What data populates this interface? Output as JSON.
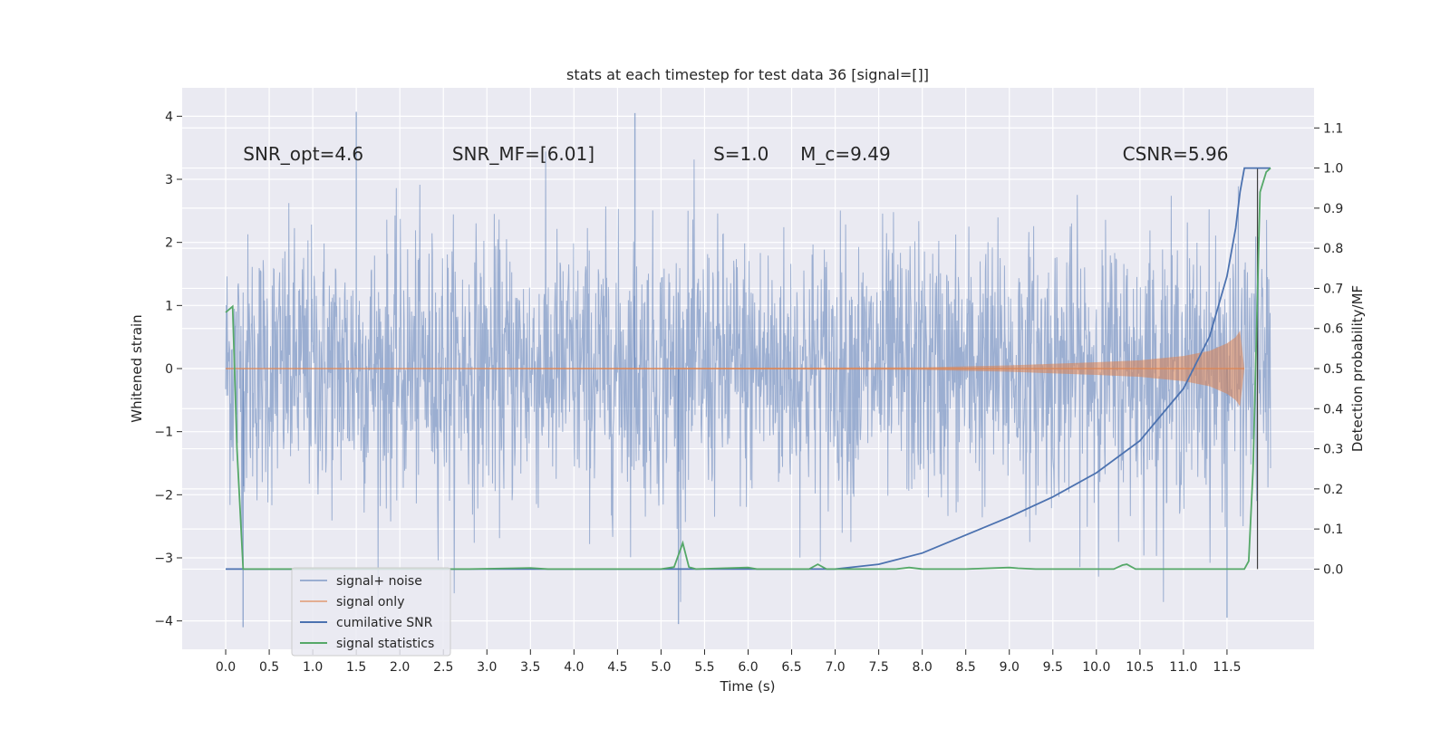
{
  "chart_data": {
    "type": "line",
    "title": "stats at each timestep for test data 36 [signal=[]]",
    "xlabel": "Time (s)",
    "ylabel": "Whitened strain",
    "ylabel_right": "Detection probability/MF",
    "xlim": [
      -0.5,
      12.5
    ],
    "ylim": [
      -4.45,
      4.45
    ],
    "ylim_right": [
      -0.2,
      1.2
    ],
    "x_ticks": [
      "0.0",
      "0.5",
      "1.0",
      "1.5",
      "2.0",
      "2.5",
      "3.0",
      "3.5",
      "4.0",
      "4.5",
      "5.0",
      "5.5",
      "6.0",
      "6.5",
      "7.0",
      "7.5",
      "8.0",
      "8.5",
      "9.0",
      "9.5",
      "10.0",
      "10.5",
      "11.0",
      "11.5"
    ],
    "y_ticks": [
      "4",
      "3",
      "2",
      "1",
      "0",
      "−1",
      "−2",
      "−3",
      "−4"
    ],
    "y_ticks_right": [
      "1.1",
      "1.0",
      "0.9",
      "0.8",
      "0.7",
      "0.6",
      "0.5",
      "0.4",
      "0.3",
      "0.2",
      "0.1",
      "0.0"
    ],
    "annotations": [
      {
        "text": "SNR_opt=4.6",
        "x": 0.2,
        "y": 3.3
      },
      {
        "text": "SNR_MF=[6.01]",
        "x": 2.6,
        "y": 3.3
      },
      {
        "text": "S=1.0",
        "x": 5.6,
        "y": 3.3
      },
      {
        "text": "M_c=9.49",
        "x": 6.6,
        "y": 3.3
      },
      {
        "text": "CSNR=5.96",
        "x": 10.3,
        "y": 3.3
      }
    ],
    "grid": true,
    "legend_position": "lower-left",
    "series": [
      {
        "name": "signal+ noise",
        "axis": "left",
        "color": "#4c72b0",
        "style": "dense noise, approx. amplitude ±2 with peaks to ±4",
        "x_range": [
          0.0,
          12.0
        ],
        "peaks": [
          [
            1.5,
            4.07
          ],
          [
            4.7,
            4.05
          ],
          [
            0.2,
            -4.1
          ],
          [
            5.2,
            -4.05
          ],
          [
            11.5,
            -3.95
          ]
        ]
      },
      {
        "name": "signal only",
        "axis": "left",
        "color": "#dd8452",
        "style": "chirp envelope, zero until ~8.0 s, grows to ~0.6 at 11.65 s",
        "envelope": {
          "x": [
            0,
            8.0,
            9.0,
            10.0,
            10.5,
            11.0,
            11.3,
            11.5,
            11.6,
            11.65,
            11.7
          ],
          "y": [
            0,
            0.02,
            0.05,
            0.1,
            0.13,
            0.2,
            0.28,
            0.4,
            0.5,
            0.6,
            0
          ]
        }
      },
      {
        "name": "cumilative SNR",
        "axis": "right",
        "color": "#4c72b0",
        "x": [
          0,
          7.0,
          7.5,
          8.0,
          8.5,
          9.0,
          9.5,
          10.0,
          10.5,
          11.0,
          11.3,
          11.5,
          11.6,
          11.65,
          11.7,
          11.85,
          12.0
        ],
        "y": [
          0,
          0,
          0.012,
          0.04,
          0.085,
          0.13,
          0.18,
          0.24,
          0.32,
          0.45,
          0.58,
          0.73,
          0.85,
          0.94,
          1.0,
          1.0,
          1.0
        ]
      },
      {
        "name": "signal statistics",
        "axis": "right",
        "color": "#55a868",
        "x": [
          0,
          0.08,
          0.13,
          0.2,
          2.8,
          3.3,
          3.5,
          3.7,
          5.0,
          5.15,
          5.25,
          5.32,
          5.4,
          5.7,
          6.0,
          6.1,
          6.7,
          6.8,
          6.9,
          7.7,
          7.85,
          8.0,
          8.5,
          9.0,
          9.1,
          9.3,
          10.2,
          10.3,
          10.35,
          10.45,
          11.5,
          11.7,
          11.75,
          11.8,
          11.88,
          11.95,
          12.0
        ],
        "y": [
          0.64,
          0.655,
          0.3,
          0.0,
          0.0,
          0.002,
          0.003,
          0.0,
          0.0,
          0.005,
          0.065,
          0.005,
          0.0,
          0.002,
          0.004,
          0.0,
          0.0,
          0.012,
          0.0,
          0.0,
          0.004,
          0.0,
          0.0,
          0.004,
          0.002,
          0.0,
          0.0,
          0.01,
          0.012,
          0.0,
          0.0,
          0.0,
          0.02,
          0.25,
          0.94,
          0.99,
          1.0
        ]
      }
    ],
    "vertical_line": {
      "x": 11.85,
      "color": "#3f3f3f"
    }
  }
}
